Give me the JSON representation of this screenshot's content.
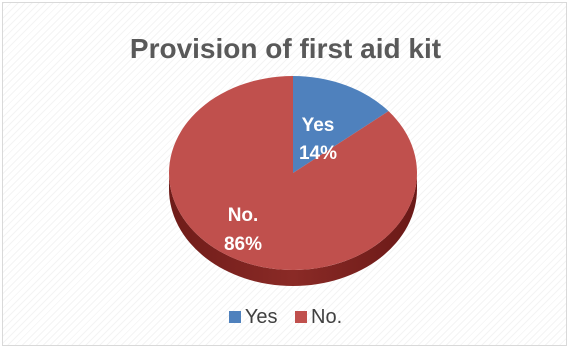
{
  "chart_data": {
    "type": "pie",
    "title": "Provision of first aid kit",
    "categories": [
      "Yes",
      "No."
    ],
    "values": [
      14,
      86
    ],
    "value_format": "percent",
    "data_labels": [
      {
        "category": "Yes",
        "percent": "14%"
      },
      {
        "category": "No.",
        "percent": "86%"
      }
    ],
    "legend_position": "bottom",
    "colors": {
      "Yes": "#4f81bd",
      "No.": "#c0504d"
    },
    "style": "3d"
  }
}
